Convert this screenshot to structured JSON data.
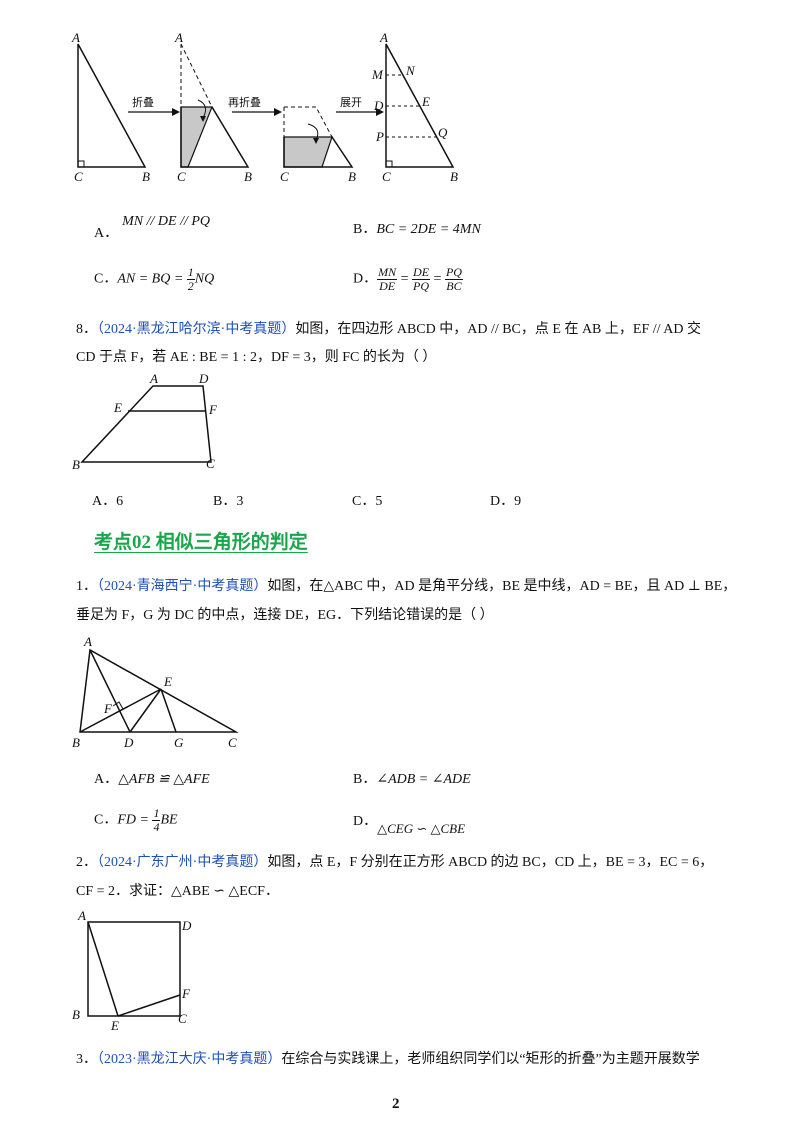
{
  "top_figure": {
    "step1": "折叠",
    "step2": "再折叠",
    "step3": "展开",
    "points": {
      "A": "A",
      "B": "B",
      "C": "C",
      "M": "M",
      "N": "N",
      "D": "D",
      "E": "E",
      "P": "P",
      "Q": "Q"
    }
  },
  "q7_options": {
    "A": {
      "label": "A．",
      "text": "MN // DE // PQ"
    },
    "B": {
      "label": "B．",
      "text": "BC = 2DE = 4MN"
    },
    "C": {
      "label": "C．",
      "pre": "AN = BQ = ",
      "num": "1",
      "den": "2",
      "post": "NQ"
    },
    "D": {
      "label": "D．",
      "f1n": "MN",
      "f1d": "DE",
      "f2n": "DE",
      "f2d": "PQ",
      "f3n": "PQ",
      "f3d": "BC"
    }
  },
  "q8": {
    "number": "8．",
    "source": "（2024·黑龙江哈尔滨·中考真题）",
    "text1": "如图，在四边形 ABCD 中，AD // BC，点 E 在 AB 上，EF // AD 交",
    "text2": "CD 于点 F，若 AE : BE = 1 : 2，DF = 3，则 FC 的长为（    ）",
    "points": {
      "A": "A",
      "D": "D",
      "E": "E",
      "F": "F",
      "B": "B",
      "C": "C"
    },
    "options": [
      "A．6",
      "B．3",
      "C．5",
      "D．9"
    ]
  },
  "section_heading": "考点02  相似三角形的判定",
  "q1": {
    "number": "1．",
    "source": "（2024·青海西宁·中考真题）",
    "text1": "如图，在△ABC 中，AD 是角平分线，BE 是中线，AD = BE，且 AD ⊥ BE，",
    "text2": "垂足为 F，G 为 DC 的中点，连接 DE，EG．下列结论错误的是（    ）",
    "points": {
      "A": "A",
      "E": "E",
      "F": "F",
      "B": "B",
      "D": "D",
      "G": "G",
      "C": "C"
    },
    "options": {
      "A": {
        "label": "A．",
        "text": "△AFB ≌ △AFE"
      },
      "B": {
        "label": "B．",
        "text": "∠ADB = ∠ADE"
      },
      "C": {
        "label": "C．",
        "pre": "FD = ",
        "num": "1",
        "den": "4",
        "post": "BE"
      },
      "D": {
        "label": "D．",
        "text": "△CEG ∽ △CBE"
      }
    }
  },
  "q2": {
    "number": "2．",
    "source": "（2024·广东广州·中考真题）",
    "text1": "如图，点 E，F 分别在正方形 ABCD 的边 BC，CD 上，BE = 3，EC = 6，",
    "text2": "CF = 2．求证：△ABE ∽ △ECF．",
    "points": {
      "A": "A",
      "D": "D",
      "F": "F",
      "B": "B",
      "E": "E",
      "C": "C"
    }
  },
  "q3": {
    "number": "3．",
    "source": "（2023·黑龙江大庆·中考真题）",
    "text1": "在综合与实践课上，老师组织同学们以“矩形的折叠”为主题开展数学"
  },
  "page_number": "2"
}
